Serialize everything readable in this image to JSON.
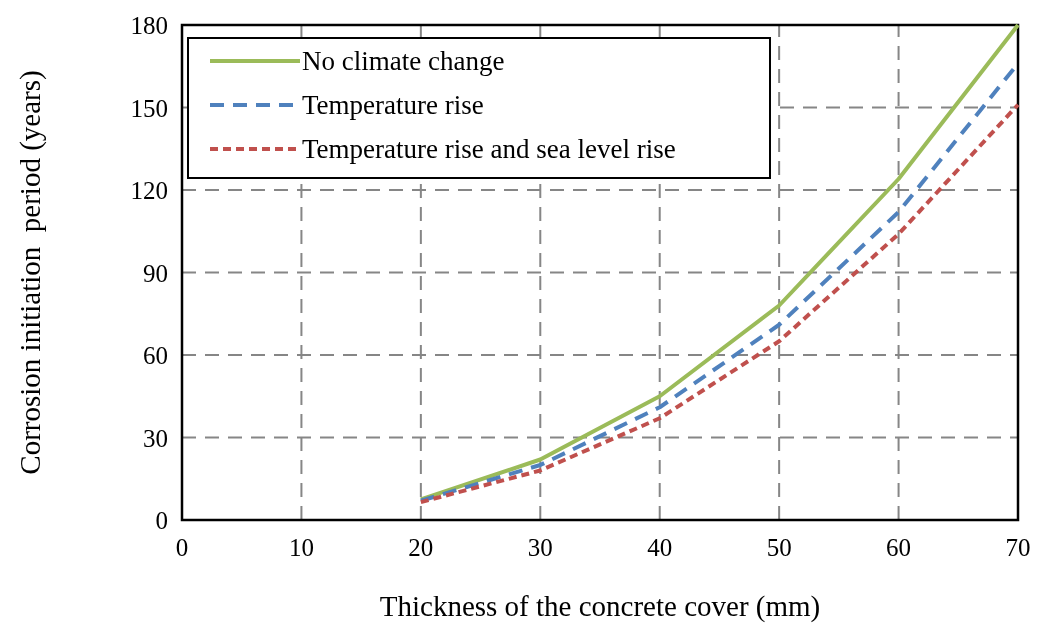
{
  "chart_data": {
    "type": "line",
    "xlabel": "Thickness of the concrete cover (mm)",
    "ylabel": "Corrosion initiation  period (years)",
    "x": [
      20,
      30,
      40,
      50,
      60,
      70
    ],
    "series": [
      {
        "name": "No climate change",
        "color": "#9bbb59",
        "line_style": "solid",
        "values": [
          7.5,
          22,
          45,
          78,
          124,
          180
        ]
      },
      {
        "name": "Temperature rise",
        "color": "#4f81bd",
        "line_style": "dashed",
        "values": [
          7,
          20,
          41,
          71,
          112,
          166
        ]
      },
      {
        "name": "Temperature rise and sea level rise",
        "color": "#c0504d",
        "line_style": "dotted",
        "values": [
          6.5,
          18,
          37,
          65,
          104,
          151
        ]
      }
    ],
    "xlim": [
      0,
      70
    ],
    "xticks": [
      0,
      10,
      20,
      30,
      40,
      50,
      60,
      70
    ],
    "ylim": [
      0,
      180
    ],
    "yticks": [
      0,
      30,
      60,
      90,
      120,
      150,
      180
    ],
    "grid": true,
    "legend": "top left",
    "marker": "none"
  }
}
